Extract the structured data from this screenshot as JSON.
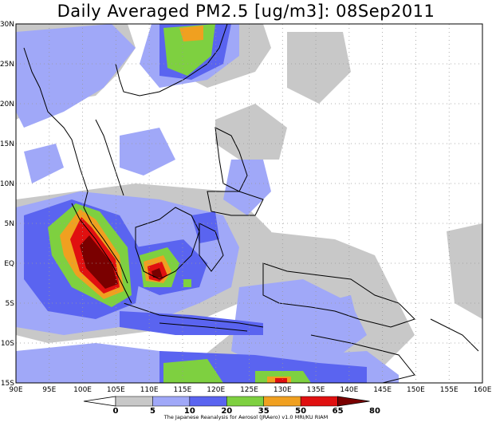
{
  "title": "Daily Averaged PM2.5 [ug/m3]: 08Sep2011",
  "lat_labels": [
    "30N",
    "25N",
    "20N",
    "15N",
    "10N",
    "5N",
    "EQ",
    "5S",
    "10S",
    "15S"
  ],
  "lon_labels": [
    "90E",
    "95E",
    "100E",
    "105E",
    "110E",
    "115E",
    "120E",
    "125E",
    "130E",
    "135E",
    "140E",
    "145E",
    "150E",
    "155E",
    "160E"
  ],
  "colorbar": {
    "ticks": [
      "0",
      "5",
      "10",
      "20",
      "35",
      "50",
      "65",
      "80"
    ],
    "colors": [
      "#ffffff",
      "#c8c8c8",
      "#a0a8f8",
      "#5a64f0",
      "#7ed040",
      "#f0a020",
      "#e01010",
      "#7a0000"
    ]
  },
  "credit": "The Japanese Reanalysis for Aerosol (JRAero) v1.0 MRI/KU RIAM"
}
